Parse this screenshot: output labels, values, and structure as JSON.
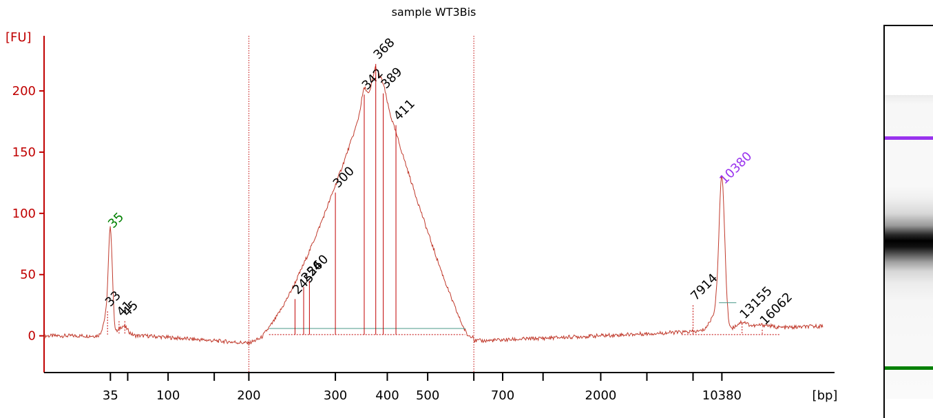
{
  "chart_data": {
    "type": "line",
    "title": "sample WT3Bis",
    "ylabel": "[FU]",
    "xlabel": "[bp]",
    "ylim": [
      -30,
      245
    ],
    "yticks": [
      0,
      50,
      100,
      150,
      200
    ],
    "x_tick_labels": [
      {
        "label": "35",
        "x": 0
      },
      {
        "label": "",
        "x": 0.3
      },
      {
        "label": "100",
        "x": 1
      },
      {
        "label": "",
        "x": 1.8
      },
      {
        "label": "200",
        "x": 2.4
      },
      {
        "label": "300",
        "x": 3.9
      },
      {
        "label": "400",
        "x": 4.8
      },
      {
        "label": "500",
        "x": 5.5
      },
      {
        "label": "",
        "x": 6.3
      },
      {
        "label": "700",
        "x": 6.8
      },
      {
        "label": "",
        "x": 7.5
      },
      {
        "label": "2000",
        "x": 8.5
      },
      {
        "label": "",
        "x": 9.3
      },
      {
        "label": "",
        "x": 10.1
      },
      {
        "label": "10380",
        "x": 10.6
      }
    ],
    "region_bounds": [
      2.4,
      6.3
    ],
    "peaks": [
      {
        "label": "35",
        "x": 0,
        "y": 84,
        "color": "#008000",
        "type": "marker"
      },
      {
        "label": "33",
        "x": -0.05,
        "y": 20,
        "color": "#000000"
      },
      {
        "label": "41",
        "x": 0.15,
        "y": 12,
        "color": "#000000"
      },
      {
        "label": "45",
        "x": 0.25,
        "y": 12,
        "color": "#000000"
      },
      {
        "label": "245",
        "x": 3.2,
        "y": 30,
        "color": "#000000"
      },
      {
        "label": "254",
        "x": 3.35,
        "y": 40,
        "color": "#000000"
      },
      {
        "label": "260",
        "x": 3.45,
        "y": 45,
        "color": "#000000"
      },
      {
        "label": "300",
        "x": 3.9,
        "y": 117,
        "color": "#000000"
      },
      {
        "label": "342",
        "x": 4.4,
        "y": 197,
        "color": "#000000"
      },
      {
        "label": "368",
        "x": 4.6,
        "y": 222,
        "color": "#000000"
      },
      {
        "label": "389",
        "x": 4.73,
        "y": 198,
        "color": "#000000"
      },
      {
        "label": "411",
        "x": 4.95,
        "y": 172,
        "color": "#000000"
      },
      {
        "label": "7914",
        "x": 10.1,
        "y": 25,
        "color": "#000000"
      },
      {
        "label": "10380",
        "x": 10.6,
        "y": 120,
        "color": "#9933ee",
        "type": "marker"
      },
      {
        "label": "13155",
        "x": 10.95,
        "y": 10,
        "color": "#000000"
      },
      {
        "label": "16062",
        "x": 11.3,
        "y": 5,
        "color": "#000000"
      }
    ]
  },
  "gel": {
    "upper_marker_color": "#9933ee",
    "lower_marker_color": "#008000"
  }
}
